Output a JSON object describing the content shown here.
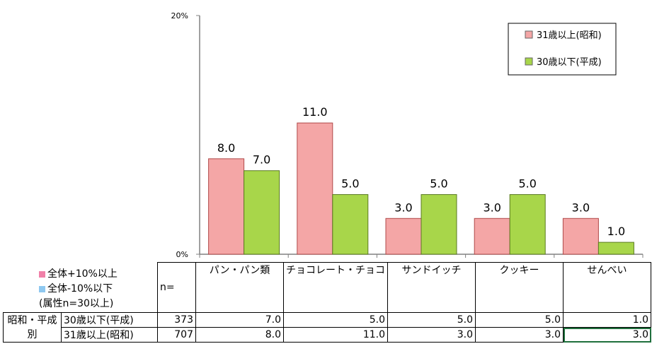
{
  "chart_data": {
    "type": "bar",
    "categories": [
      "パン・パン類",
      "チョコレート・チョコ",
      "サンドイッチ",
      "クッキー",
      "せんべい"
    ],
    "series": [
      {
        "name": "31歳以上(昭和)",
        "values": [
          8.0,
          11.0,
          3.0,
          3.0,
          3.0
        ],
        "color": "#f4a6a6"
      },
      {
        "name": "30歳以下(平成)",
        "values": [
          7.0,
          5.0,
          5.0,
          5.0,
          1.0
        ],
        "color": "#a8d64a"
      }
    ],
    "ylim": [
      0,
      20
    ],
    "yticks": [
      "0%",
      "20%"
    ],
    "legend": "top-right",
    "grid": false
  },
  "notes": {
    "above": "全体+10%以上",
    "below": "全体-10%以下",
    "condition": "(属性n=30以上)",
    "above_color": "#f080a8",
    "below_color": "#8ec8f0"
  },
  "table": {
    "n_label": "n=",
    "group_label_1": "昭和・平成",
    "group_label_2": "別",
    "headers": [
      "パン・パン類",
      "チョコレート・チョコ",
      "サンドイッチ",
      "クッキー",
      "せんべい"
    ],
    "rows": [
      {
        "label": "30歳以下(平成)",
        "n": "373",
        "values": [
          "7.0",
          "5.0",
          "5.0",
          "5.0",
          "1.0"
        ]
      },
      {
        "label": "31歳以上(昭和)",
        "n": "707",
        "values": [
          "8.0",
          "11.0",
          "3.0",
          "3.0",
          "3.0"
        ]
      }
    ]
  }
}
